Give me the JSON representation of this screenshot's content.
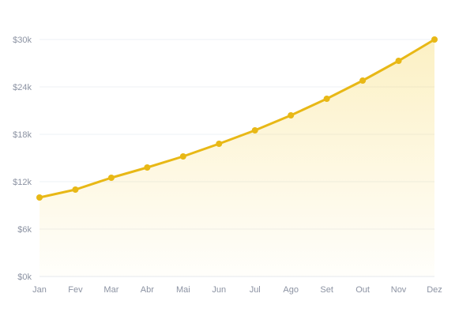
{
  "chart_data": {
    "type": "area",
    "title": "",
    "xlabel": "",
    "ylabel": "",
    "categories": [
      "Jan",
      "Fev",
      "Mar",
      "Abr",
      "Mai",
      "Jun",
      "Jul",
      "Ago",
      "Set",
      "Out",
      "Nov",
      "Dez"
    ],
    "series": [
      {
        "values": [
          10000,
          11000,
          12500,
          13800,
          15200,
          16800,
          18500,
          20400,
          22500,
          24800,
          27300,
          30000
        ],
        "color": "#e8b816"
      }
    ],
    "ylim": [
      0,
      30000
    ],
    "yticks": [
      0,
      6000,
      12000,
      18000,
      24000,
      30000
    ],
    "ytick_labels": [
      "$0k",
      "$6k",
      "$12k",
      "$18k",
      "$24k",
      "$30k"
    ],
    "grid": "horizontal",
    "legend": "none",
    "area_fill_color": "#f5cf3a"
  }
}
